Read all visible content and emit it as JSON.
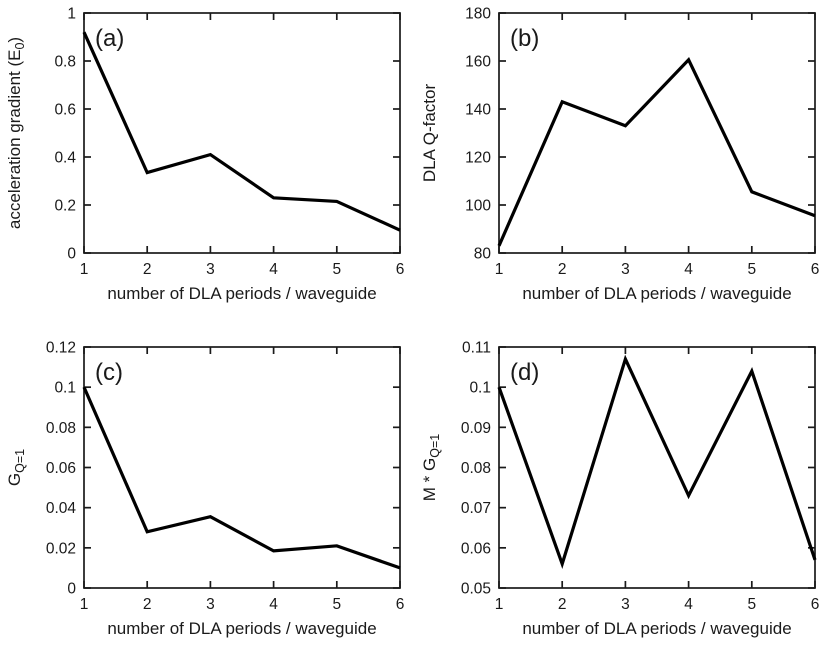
{
  "figure": {
    "background": "#ffffff",
    "line_color": "#000000",
    "axis_color": "#1a1a1a",
    "text_color": "#1a1a1a"
  },
  "chart_data": [
    {
      "type": "line",
      "panel_label": "(a)",
      "xlabel": "number of DLA periods / waveguide",
      "ylabel_parts": [
        {
          "t": "acceleration gradient (E"
        },
        {
          "t": "0",
          "sub": true
        },
        {
          "t": ")"
        }
      ],
      "x": [
        1,
        2,
        3,
        4,
        5,
        6
      ],
      "y": [
        0.92,
        0.335,
        0.41,
        0.23,
        0.215,
        0.095
      ],
      "xlim": [
        1,
        6
      ],
      "ylim": [
        0,
        1
      ],
      "xticks": {
        "values": [
          1,
          2,
          3,
          4,
          5,
          6
        ],
        "labels": [
          "1",
          "2",
          "3",
          "4",
          "5",
          "6"
        ]
      },
      "yticks": {
        "values": [
          0,
          0.2,
          0.4,
          0.6,
          0.8,
          1
        ],
        "labels": [
          "0",
          "0.2",
          "0.4",
          "0.6",
          "0.8",
          "1"
        ]
      },
      "grid": false,
      "legend": null
    },
    {
      "type": "line",
      "panel_label": "(b)",
      "xlabel": "number of DLA periods / waveguide",
      "ylabel_parts": [
        {
          "t": "DLA Q-factor"
        }
      ],
      "x": [
        1,
        2,
        3,
        4,
        5,
        6
      ],
      "y": [
        83,
        143,
        133,
        160.5,
        105.5,
        95.5
      ],
      "xlim": [
        1,
        6
      ],
      "ylim": [
        80,
        180
      ],
      "xticks": {
        "values": [
          1,
          2,
          3,
          4,
          5,
          6
        ],
        "labels": [
          "1",
          "2",
          "3",
          "4",
          "5",
          "6"
        ]
      },
      "yticks": {
        "values": [
          80,
          100,
          120,
          140,
          160,
          180
        ],
        "labels": [
          "80",
          "100",
          "120",
          "140",
          "160",
          "180"
        ]
      },
      "grid": false,
      "legend": null
    },
    {
      "type": "line",
      "panel_label": "(c)",
      "xlabel": "number of DLA periods / waveguide",
      "ylabel_parts": [
        {
          "t": "G"
        },
        {
          "t": "Q=1",
          "sub": true
        }
      ],
      "x": [
        1,
        2,
        3,
        4,
        5,
        6
      ],
      "y": [
        0.1,
        0.028,
        0.0355,
        0.0185,
        0.021,
        0.01
      ],
      "xlim": [
        1,
        6
      ],
      "ylim": [
        0,
        0.12
      ],
      "xticks": {
        "values": [
          1,
          2,
          3,
          4,
          5,
          6
        ],
        "labels": [
          "1",
          "2",
          "3",
          "4",
          "5",
          "6"
        ]
      },
      "yticks": {
        "values": [
          0,
          0.02,
          0.04,
          0.06,
          0.08,
          0.1,
          0.12
        ],
        "labels": [
          "0",
          "0.02",
          "0.04",
          "0.06",
          "0.08",
          "0.1",
          "0.12"
        ]
      },
      "grid": false,
      "legend": null
    },
    {
      "type": "line",
      "panel_label": "(d)",
      "xlabel": "number of DLA periods / waveguide",
      "ylabel_parts": [
        {
          "t": "M * G"
        },
        {
          "t": "Q=1",
          "sub": true
        }
      ],
      "x": [
        1,
        2,
        3,
        4,
        5,
        6
      ],
      "y": [
        0.1,
        0.056,
        0.107,
        0.073,
        0.104,
        0.057
      ],
      "xlim": [
        1,
        6
      ],
      "ylim": [
        0.05,
        0.11
      ],
      "xticks": {
        "values": [
          1,
          2,
          3,
          4,
          5,
          6
        ],
        "labels": [
          "1",
          "2",
          "3",
          "4",
          "5",
          "6"
        ]
      },
      "yticks": {
        "values": [
          0.05,
          0.06,
          0.07,
          0.08,
          0.09,
          0.1,
          0.11
        ],
        "labels": [
          "0.05",
          "0.06",
          "0.07",
          "0.08",
          "0.09",
          "0.1",
          "0.11"
        ]
      },
      "grid": false,
      "legend": null
    }
  ]
}
